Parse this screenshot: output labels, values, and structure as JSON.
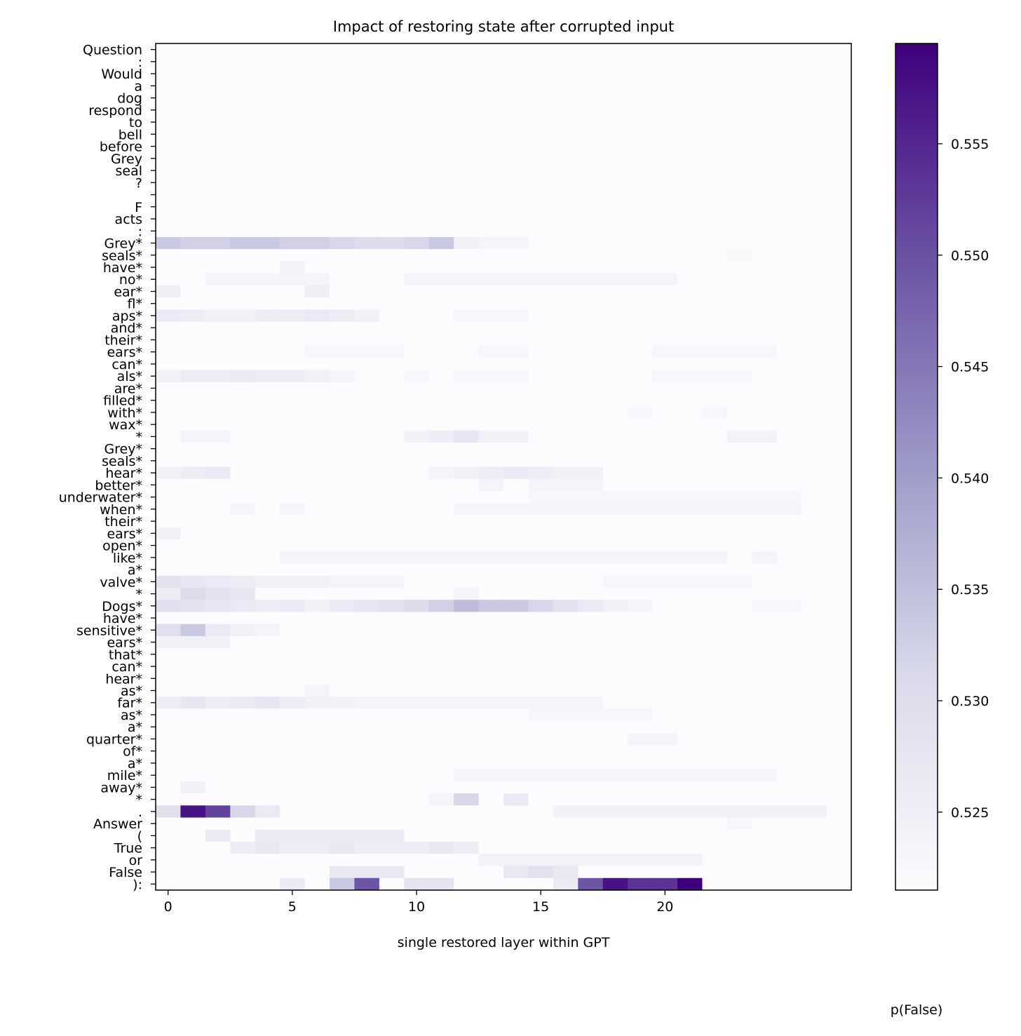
{
  "chart_data": {
    "type": "heatmap",
    "title": "Impact of restoring state after corrupted input",
    "xlabel": "single restored layer within GPT",
    "ylabel": "",
    "colorbar_label": "p(False)",
    "colormap": "Purples",
    "color_low": "#fcfbfd",
    "color_high": "#3f007d",
    "x_ticks": [
      0,
      5,
      10,
      15,
      20
    ],
    "xlim": [
      -0.5,
      27.5
    ],
    "n_layers": 28,
    "vmin": 0.5215,
    "vmax": 0.5595,
    "colorbar_ticks": [
      "0.525",
      "0.530",
      "0.535",
      "0.540",
      "0.545",
      "0.550",
      "0.555"
    ],
    "colorbar_tick_values": [
      0.525,
      0.53,
      0.535,
      0.54,
      0.545,
      0.55,
      0.555
    ],
    "tokens": [
      "Question",
      ":",
      "Would",
      "a",
      "dog",
      "respond",
      "to",
      "bell",
      "before",
      "Grey",
      "seal",
      "?",
      "",
      "F",
      "acts",
      ":",
      "Grey*",
      "seals*",
      "have*",
      "no*",
      "ear*",
      "fl*",
      "aps*",
      "and*",
      "their*",
      "ears*",
      "can*",
      "als*",
      "are*",
      "filled*",
      "with*",
      "wax*",
      "*",
      "Grey*",
      "seals*",
      "hear*",
      "better*",
      "underwater*",
      "when*",
      "their*",
      "ears*",
      "open*",
      "like*",
      "a*",
      "valve*",
      "*",
      "Dogs*",
      "have*",
      "sensitive*",
      "ears*",
      "that*",
      "can*",
      "hear*",
      "as*",
      "far*",
      "as*",
      "a*",
      "quarter*",
      "of*",
      "a*",
      "mile*",
      "away*",
      "*",
      ".",
      "Answer",
      "(",
      "True",
      "or",
      "False",
      "):"
    ],
    "cells": [
      {
        "row": 16,
        "values": [
          0.5335,
          0.5325,
          0.5325,
          0.5335,
          0.5335,
          0.5325,
          0.5325,
          0.5315,
          0.5305,
          0.5305,
          0.5315,
          0.5335,
          0.5245,
          0.5235,
          0.5235
        ]
      },
      {
        "row": 17,
        "cols": [
          23
        ],
        "value": 0.5225
      },
      {
        "row": 18,
        "cols": [
          5
        ],
        "value": 0.524
      },
      {
        "row": 19,
        "cols": [
          2,
          3,
          4,
          5,
          6,
          10,
          11,
          12,
          13,
          14,
          15,
          16,
          17,
          18,
          19,
          20
        ],
        "value": 0.5235
      },
      {
        "row": 20,
        "cols": [
          0,
          6
        ],
        "value": 0.525
      },
      {
        "row": 22,
        "values": [
          0.5265,
          0.5255,
          0.5245,
          0.5245,
          0.5255,
          0.5255,
          0.5265,
          0.5255,
          0.5245
        ]
      },
      {
        "row": 22,
        "cols": [
          12,
          13,
          14
        ],
        "value": 0.5228
      },
      {
        "row": 25,
        "cols": [
          6,
          7,
          8,
          9,
          13,
          14,
          20,
          21,
          22,
          23,
          24
        ],
        "value": 0.523
      },
      {
        "row": 27,
        "values": [
          0.5245,
          0.5255,
          0.5255,
          0.5265,
          0.5255,
          0.5255,
          0.5245,
          0.5235
        ]
      },
      {
        "row": 27,
        "cols": [
          10,
          12,
          13,
          14,
          20,
          21,
          22,
          23
        ],
        "value": 0.5228
      },
      {
        "row": 30,
        "cols": [
          19,
          22
        ],
        "value": 0.5228
      },
      {
        "row": 32,
        "cols": [
          1,
          2
        ],
        "value": 0.5235
      },
      {
        "row": 32,
        "values_from": 10,
        "values": [
          0.5245,
          0.5255,
          0.5275,
          0.5245,
          0.5245
        ]
      },
      {
        "row": 32,
        "cols": [
          23,
          24
        ],
        "value": 0.524
      },
      {
        "row": 35,
        "values": [
          0.5245,
          0.5255,
          0.5265
        ]
      },
      {
        "row": 35,
        "values_from": 11,
        "values": [
          0.5235,
          0.5245,
          0.5255,
          0.5265,
          0.5255,
          0.5245,
          0.5245
        ]
      },
      {
        "row": 36,
        "cols": [
          13,
          15,
          16,
          17
        ],
        "value": 0.5235
      },
      {
        "row": 37,
        "cols": [
          15,
          16,
          17,
          18,
          19,
          20,
          21,
          22,
          23,
          24,
          25
        ],
        "value": 0.5228
      },
      {
        "row": 38,
        "cols": [
          3,
          5,
          12,
          13,
          14,
          15,
          16,
          17,
          18,
          19,
          20,
          21,
          22,
          23,
          24,
          25
        ],
        "value": 0.5232
      },
      {
        "row": 40,
        "cols": [
          0
        ],
        "value": 0.5245
      },
      {
        "row": 42,
        "cols": [
          5,
          6,
          7,
          8,
          9,
          10,
          11,
          12,
          13,
          14,
          15,
          16,
          17,
          18,
          19,
          20,
          21,
          22,
          24
        ],
        "value": 0.5235
      },
      {
        "row": 44,
        "values": [
          0.5285,
          0.5275,
          0.5265,
          0.5255,
          0.5245,
          0.5245,
          0.5245,
          0.5235,
          0.5235,
          0.5235
        ]
      },
      {
        "row": 44,
        "cols": [
          18,
          19,
          20,
          21,
          22,
          23
        ],
        "value": 0.523
      },
      {
        "row": 45,
        "values": [
          0.5255,
          0.5305,
          0.5285,
          0.5275
        ]
      },
      {
        "row": 45,
        "cols": [
          12
        ],
        "value": 0.5235
      },
      {
        "row": 46,
        "values": [
          0.5295,
          0.5285,
          0.5275,
          0.5265,
          0.5255,
          0.5265,
          0.5245,
          0.5265,
          0.5275,
          0.5285,
          0.5305,
          0.5325,
          0.5355,
          0.5335,
          0.5335,
          0.5315,
          0.5285,
          0.5265,
          0.5245,
          0.5235
        ]
      },
      {
        "row": 46,
        "cols": [
          24,
          25
        ],
        "value": 0.5228
      },
      {
        "row": 48,
        "values": [
          0.5295,
          0.5335,
          0.5265,
          0.5245,
          0.5235
        ]
      },
      {
        "row": 49,
        "cols": [
          0,
          1,
          2
        ],
        "value": 0.5245
      },
      {
        "row": 53,
        "cols": [
          6
        ],
        "value": 0.5235
      },
      {
        "row": 54,
        "values": [
          0.5255,
          0.5275,
          0.5255,
          0.5265,
          0.5275,
          0.5255,
          0.5245,
          0.5245,
          0.5235,
          0.5235,
          0.5235,
          0.5235,
          0.5235,
          0.5235,
          0.5235,
          0.5235,
          0.5235,
          0.5235
        ]
      },
      {
        "row": 55,
        "cols": [
          15,
          16,
          17,
          18,
          19
        ],
        "value": 0.523
      },
      {
        "row": 57,
        "cols": [
          19,
          20
        ],
        "value": 0.5235
      },
      {
        "row": 60,
        "cols": [
          12,
          13,
          14,
          15,
          16,
          17,
          18,
          19,
          20,
          21,
          22,
          23,
          24
        ],
        "value": 0.5232
      },
      {
        "row": 61,
        "cols": [
          1
        ],
        "value": 0.5245
      },
      {
        "row": 62,
        "cols": [
          11,
          14
        ],
        "value": 0.5235
      },
      {
        "row": 62,
        "cols": [
          12
        ],
        "value": 0.5315
      },
      {
        "row": 62,
        "cols": [
          14
        ],
        "value": 0.5265
      },
      {
        "row": 63,
        "values": [
          0.5295,
          0.5575,
          0.5515,
          0.5315,
          0.5265
        ]
      },
      {
        "row": 63,
        "cols": [
          16,
          17,
          18,
          19,
          20,
          21,
          22,
          23,
          24,
          25,
          26
        ],
        "value": 0.5245
      },
      {
        "row": 64,
        "cols": [
          23
        ],
        "value": 0.523
      },
      {
        "row": 65,
        "cols": [
          2,
          4,
          5,
          6,
          7,
          8,
          9
        ],
        "value": 0.526
      },
      {
        "row": 66,
        "cols": [
          3,
          4,
          5,
          6,
          7,
          8,
          9,
          10,
          11,
          12
        ],
        "value": 0.5255
      },
      {
        "row": 66,
        "cols": [
          4,
          7,
          11
        ],
        "value": 0.527
      },
      {
        "row": 67,
        "cols": [
          13,
          14,
          15,
          16,
          17,
          18,
          19,
          20,
          21
        ],
        "value": 0.524
      },
      {
        "row": 68,
        "cols": [
          7,
          8,
          9,
          14,
          15,
          16
        ],
        "value": 0.527
      },
      {
        "row": 68,
        "cols": [
          15
        ],
        "value": 0.529
      },
      {
        "row": 69,
        "cols": [
          5,
          10,
          11,
          16
        ],
        "value": 0.526
      },
      {
        "row": 69,
        "cols": [
          7
        ],
        "value": 0.5335
      },
      {
        "row": 69,
        "cols": [
          8
        ],
        "value": 0.5495
      },
      {
        "row": 69,
        "cols": [
          10,
          11
        ],
        "value": 0.528
      },
      {
        "row": 69,
        "cols": [
          17
        ],
        "value": 0.5495
      },
      {
        "row": 69,
        "cols": [
          18
        ],
        "value": 0.5575
      },
      {
        "row": 69,
        "cols": [
          19
        ],
        "value": 0.5535
      },
      {
        "row": 69,
        "cols": [
          20
        ],
        "value": 0.5535
      },
      {
        "row": 69,
        "cols": [
          21
        ],
        "value": 0.5595
      }
    ]
  }
}
